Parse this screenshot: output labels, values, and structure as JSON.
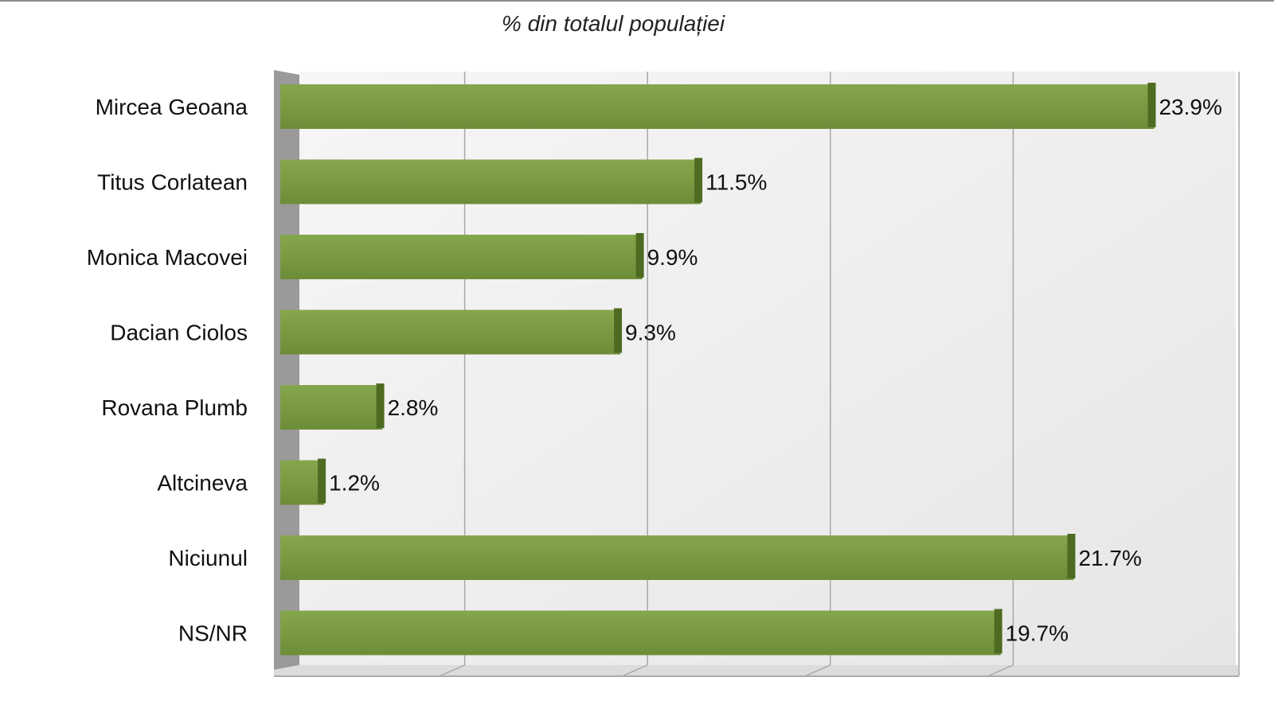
{
  "chart_data": {
    "type": "bar",
    "orientation": "horizontal",
    "title": "% din totalul populației",
    "categories": [
      "Mircea Geoana",
      "Titus Corlatean",
      "Monica Macovei",
      "Dacian Ciolos",
      "Rovana Plumb",
      "Altcineva",
      "Niciunul",
      "NS/NR"
    ],
    "values": [
      23.9,
      11.5,
      9.9,
      9.3,
      2.8,
      1.2,
      21.7,
      19.7
    ],
    "value_labels": [
      "23.9%",
      "11.5%",
      "9.9%",
      "9.3%",
      "2.8%",
      "1.2%",
      "21.7%",
      "19.7%"
    ],
    "xlabel": "",
    "ylabel": "",
    "xlim": [
      0,
      25
    ],
    "grid": true,
    "bar_color": "#7a9a42",
    "bar_edge_color": "#4e6b22"
  }
}
